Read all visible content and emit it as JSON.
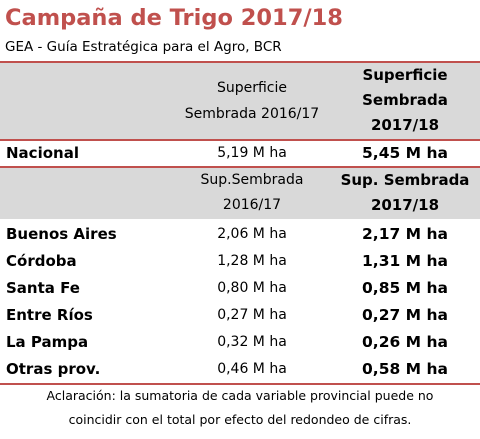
{
  "title": "Campaña de Trigo 2017/18",
  "subtitle": "GEA - Guía Estratégica para el Agro, BCR",
  "header1": {
    "col1_line1": "Superficie",
    "col1_line2": "Sembrada 2016/17",
    "col2_line1": "Superficie",
    "col2_line2": "Sembrada",
    "col2_line3": "2017/18"
  },
  "nacional": {
    "label": "Nacional",
    "v2016": "5,19 M ha",
    "v2017": "5,45 M ha"
  },
  "header2": {
    "col1_line1": "Sup.Sembrada",
    "col1_line2": "2016/17",
    "col2_line1": "Sup. Sembrada",
    "col2_line2": "2017/18"
  },
  "provinces": [
    {
      "label": "Buenos Aires",
      "v2016": "2,06 M ha",
      "v2017": "2,17 M ha"
    },
    {
      "label": "Córdoba",
      "v2016": "1,28 M ha",
      "v2017": "1,31 M ha"
    },
    {
      "label": "Santa Fe",
      "v2016": "0,80 M ha",
      "v2017": "0,85 M ha"
    },
    {
      "label": "Entre Ríos",
      "v2016": "0,27 M ha",
      "v2017": "0,27 M ha"
    },
    {
      "label": "La Pampa",
      "v2016": "0,32 M ha",
      "v2017": "0,26 M ha"
    },
    {
      "label": "Otras prov.",
      "v2016": "0,46 M ha",
      "v2017": "0,58 M ha"
    }
  ],
  "note": {
    "line1": "Aclaración: la sumatoria de cada variable provincial puede no",
    "line2": "coincidir con el total por efecto del redondeo de cifras."
  },
  "colors": {
    "title": "#c0504d",
    "accent_line": "#c0504d",
    "header_bg": "#d9d9d9"
  }
}
